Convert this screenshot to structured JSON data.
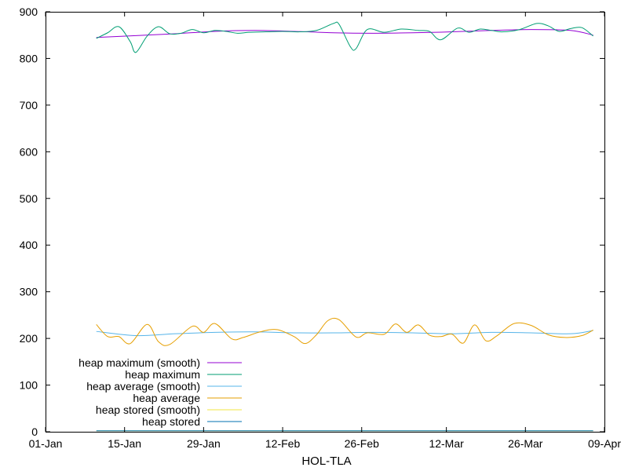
{
  "chart_data": {
    "type": "line",
    "title": "",
    "xlabel": "HOL-TLA",
    "ylabel": "",
    "xlim": [
      "2024-01-01",
      "2024-04-09"
    ],
    "ylim": [
      0,
      900
    ],
    "x_ticks": [
      "01-Jan",
      "15-Jan",
      "29-Jan",
      "12-Feb",
      "26-Feb",
      "12-Mar",
      "26-Mar",
      "09-Apr"
    ],
    "y_ticks": [
      0,
      100,
      200,
      300,
      400,
      500,
      600,
      700,
      800,
      900
    ],
    "grid": false,
    "legend_position": "bottom-left",
    "series": [
      {
        "name": "heap maximum (smooth)",
        "color": "#9400d3",
        "points": [
          [
            "2024-01-10",
            845
          ],
          [
            "2024-01-17",
            849
          ],
          [
            "2024-01-24",
            853
          ],
          [
            "2024-01-31",
            858
          ],
          [
            "2024-02-07",
            860
          ],
          [
            "2024-02-14",
            858
          ],
          [
            "2024-02-21",
            855
          ],
          [
            "2024-02-28",
            854
          ],
          [
            "2024-03-06",
            855
          ],
          [
            "2024-03-13",
            857
          ],
          [
            "2024-03-20",
            860
          ],
          [
            "2024-03-27",
            862
          ],
          [
            "2024-04-03",
            860
          ],
          [
            "2024-04-07",
            850
          ]
        ]
      },
      {
        "name": "heap maximum",
        "color": "#009e73",
        "points": [
          [
            "2024-01-10",
            843
          ],
          [
            "2024-01-12",
            855
          ],
          [
            "2024-01-14",
            868
          ],
          [
            "2024-01-16",
            836
          ],
          [
            "2024-01-17",
            813
          ],
          [
            "2024-01-19",
            848
          ],
          [
            "2024-01-21",
            868
          ],
          [
            "2024-01-23",
            853
          ],
          [
            "2024-01-25",
            854
          ],
          [
            "2024-01-27",
            862
          ],
          [
            "2024-01-29",
            855
          ],
          [
            "2024-01-31",
            860
          ],
          [
            "2024-02-02",
            858
          ],
          [
            "2024-02-04",
            854
          ],
          [
            "2024-02-06",
            856
          ],
          [
            "2024-02-09",
            857
          ],
          [
            "2024-02-12",
            858
          ],
          [
            "2024-02-15",
            857
          ],
          [
            "2024-02-18",
            860
          ],
          [
            "2024-02-21",
            875
          ],
          [
            "2024-02-22",
            873
          ],
          [
            "2024-02-24",
            825
          ],
          [
            "2024-02-25",
            821
          ],
          [
            "2024-02-27",
            862
          ],
          [
            "2024-03-01",
            856
          ],
          [
            "2024-03-04",
            863
          ],
          [
            "2024-03-07",
            860
          ],
          [
            "2024-03-09",
            858
          ],
          [
            "2024-03-11",
            840
          ],
          [
            "2024-03-14",
            865
          ],
          [
            "2024-03-16",
            856
          ],
          [
            "2024-03-18",
            863
          ],
          [
            "2024-03-20",
            860
          ],
          [
            "2024-03-22",
            857
          ],
          [
            "2024-03-25",
            862
          ],
          [
            "2024-03-28",
            875
          ],
          [
            "2024-03-30",
            870
          ],
          [
            "2024-04-01",
            858
          ],
          [
            "2024-04-03",
            864
          ],
          [
            "2024-04-05",
            866
          ],
          [
            "2024-04-07",
            848
          ]
        ]
      },
      {
        "name": "heap average (smooth)",
        "color": "#56b4e9",
        "points": [
          [
            "2024-01-10",
            215
          ],
          [
            "2024-01-17",
            206
          ],
          [
            "2024-01-24",
            210
          ],
          [
            "2024-01-31",
            213
          ],
          [
            "2024-02-07",
            214
          ],
          [
            "2024-02-14",
            212
          ],
          [
            "2024-02-21",
            212
          ],
          [
            "2024-02-28",
            213
          ],
          [
            "2024-03-06",
            212
          ],
          [
            "2024-03-13",
            210
          ],
          [
            "2024-03-20",
            213
          ],
          [
            "2024-03-27",
            212
          ],
          [
            "2024-04-03",
            210
          ],
          [
            "2024-04-07",
            217
          ]
        ]
      },
      {
        "name": "heap average",
        "color": "#e69f00",
        "points": [
          [
            "2024-01-10",
            230
          ],
          [
            "2024-01-12",
            204
          ],
          [
            "2024-01-14",
            204
          ],
          [
            "2024-01-16",
            189
          ],
          [
            "2024-01-19",
            230
          ],
          [
            "2024-01-21",
            193
          ],
          [
            "2024-01-23",
            187
          ],
          [
            "2024-01-27",
            226
          ],
          [
            "2024-01-29",
            213
          ],
          [
            "2024-01-31",
            232
          ],
          [
            "2024-02-03",
            199
          ],
          [
            "2024-02-05",
            202
          ],
          [
            "2024-02-08",
            214
          ],
          [
            "2024-02-11",
            219
          ],
          [
            "2024-02-14",
            204
          ],
          [
            "2024-02-16",
            189
          ],
          [
            "2024-02-18",
            208
          ],
          [
            "2024-02-20",
            238
          ],
          [
            "2024-02-22",
            240
          ],
          [
            "2024-02-25",
            203
          ],
          [
            "2024-02-27",
            212
          ],
          [
            "2024-03-01",
            209
          ],
          [
            "2024-03-03",
            231
          ],
          [
            "2024-03-05",
            213
          ],
          [
            "2024-03-07",
            229
          ],
          [
            "2024-03-09",
            207
          ],
          [
            "2024-03-11",
            204
          ],
          [
            "2024-03-13",
            209
          ],
          [
            "2024-03-15",
            190
          ],
          [
            "2024-03-17",
            229
          ],
          [
            "2024-03-19",
            195
          ],
          [
            "2024-03-21",
            206
          ],
          [
            "2024-03-24",
            232
          ],
          [
            "2024-03-27",
            228
          ],
          [
            "2024-03-30",
            208
          ],
          [
            "2024-04-02",
            202
          ],
          [
            "2024-04-05",
            206
          ],
          [
            "2024-04-07",
            218
          ]
        ]
      },
      {
        "name": "heap stored (smooth)",
        "color": "#f0e442",
        "points": [
          [
            "2024-01-10",
            2
          ],
          [
            "2024-04-07",
            2
          ]
        ]
      },
      {
        "name": "heap stored",
        "color": "#0072b2",
        "points": [
          [
            "2024-01-10",
            2
          ],
          [
            "2024-04-07",
            2
          ]
        ]
      }
    ]
  }
}
